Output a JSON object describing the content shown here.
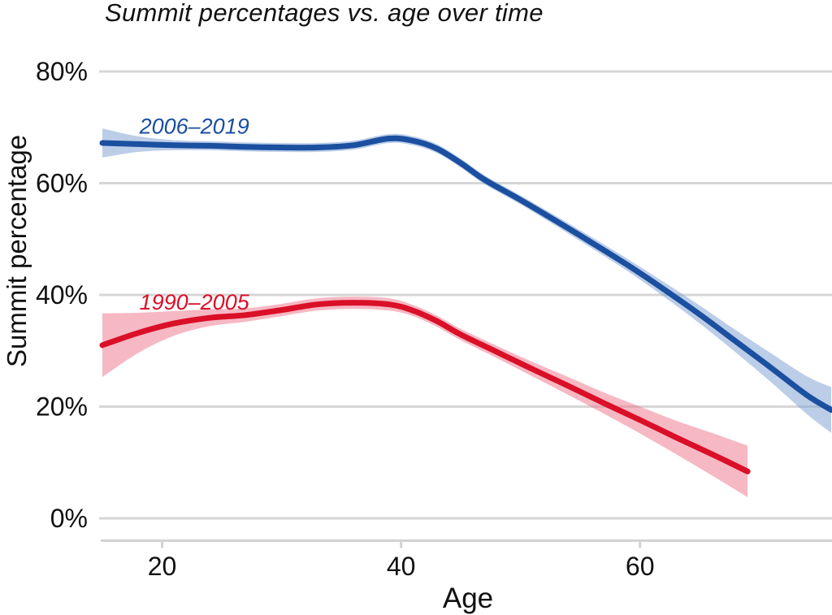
{
  "chart_data": {
    "type": "line",
    "title": "Summit percentages vs. age over time",
    "xlabel": "Age",
    "ylabel": "Summit percentage",
    "x_domain": [
      15,
      76
    ],
    "y_domain": [
      0,
      80
    ],
    "x_ticks": [
      {
        "value": 20,
        "label": "20"
      },
      {
        "value": 40,
        "label": "40"
      },
      {
        "value": 60,
        "label": "60"
      }
    ],
    "y_ticks": [
      {
        "value": 0,
        "label": "0%"
      },
      {
        "value": 20,
        "label": "20%"
      },
      {
        "value": 40,
        "label": "40%"
      },
      {
        "value": 60,
        "label": "60%"
      },
      {
        "value": 80,
        "label": "80%"
      }
    ],
    "grid": "horizontal-only",
    "legend": "inline-series-labels",
    "grid_color": "#d6d6d6",
    "axis_color": "#d2d2d2",
    "text_color": "#111111",
    "points_format": [
      "age",
      "ci_low_pct",
      "summit_pct",
      "ci_high_pct"
    ],
    "series": [
      {
        "name": "2006–2019",
        "color": "#1b4fa0",
        "band_color": "#85a4d5",
        "band_opacity": 0.55,
        "label_pos": {
          "age": 18.1,
          "pct": 68.9
        },
        "points": [
          [
            15,
            64.6,
            67.2,
            69.8
          ],
          [
            18,
            65.6,
            67.0,
            68.4
          ],
          [
            21,
            65.9,
            66.8,
            67.7
          ],
          [
            24,
            65.9,
            66.7,
            67.5
          ],
          [
            27,
            65.7,
            66.5,
            67.3
          ],
          [
            30,
            65.6,
            66.4,
            67.2
          ],
          [
            33,
            65.6,
            66.4,
            67.2
          ],
          [
            36,
            66.0,
            66.8,
            67.6
          ],
          [
            39,
            67.2,
            68.0,
            68.8
          ],
          [
            41,
            66.8,
            67.6,
            68.4
          ],
          [
            43,
            65.4,
            66.2,
            67.0
          ],
          [
            45,
            62.8,
            63.6,
            64.4
          ],
          [
            47,
            59.8,
            60.6,
            61.4
          ],
          [
            50,
            56.2,
            57.0,
            57.8
          ],
          [
            53,
            52.3,
            53.2,
            54.1
          ],
          [
            56,
            48.3,
            49.3,
            50.3
          ],
          [
            59,
            44.2,
            45.3,
            46.4
          ],
          [
            62,
            39.7,
            41.0,
            42.3
          ],
          [
            65,
            34.9,
            36.5,
            38.1
          ],
          [
            68,
            29.7,
            31.7,
            33.7
          ],
          [
            71,
            24.3,
            26.9,
            29.5
          ],
          [
            74,
            18.6,
            22.0,
            25.4
          ],
          [
            76,
            15.3,
            19.4,
            23.5
          ]
        ]
      },
      {
        "name": "1990–2005",
        "color": "#da0f28",
        "band_color": "#ef7e92",
        "band_opacity": 0.55,
        "label_pos": {
          "age": 18.1,
          "pct": 37.4
        },
        "points": [
          [
            15,
            25.3,
            31.0,
            36.7
          ],
          [
            18,
            29.6,
            33.2,
            36.8
          ],
          [
            21,
            32.7,
            34.9,
            37.1
          ],
          [
            24,
            34.4,
            35.9,
            37.4
          ],
          [
            27,
            35.2,
            36.4,
            37.6
          ],
          [
            30,
            36.2,
            37.3,
            38.4
          ],
          [
            33,
            37.2,
            38.3,
            39.4
          ],
          [
            36,
            37.5,
            38.6,
            39.7
          ],
          [
            39,
            37.2,
            38.3,
            39.4
          ],
          [
            41,
            36.2,
            37.2,
            38.2
          ],
          [
            43,
            34.3,
            35.3,
            36.3
          ],
          [
            45,
            31.9,
            32.9,
            33.9
          ],
          [
            48,
            28.7,
            29.8,
            30.9
          ],
          [
            51,
            25.4,
            26.7,
            28.0
          ],
          [
            54,
            22.1,
            23.7,
            25.3
          ],
          [
            57,
            18.7,
            20.6,
            22.5
          ],
          [
            60,
            15.2,
            17.6,
            20.0
          ],
          [
            63,
            11.5,
            14.5,
            17.5
          ],
          [
            66,
            7.7,
            11.5,
            15.3
          ],
          [
            69,
            3.8,
            8.4,
            13.0
          ]
        ]
      }
    ]
  }
}
